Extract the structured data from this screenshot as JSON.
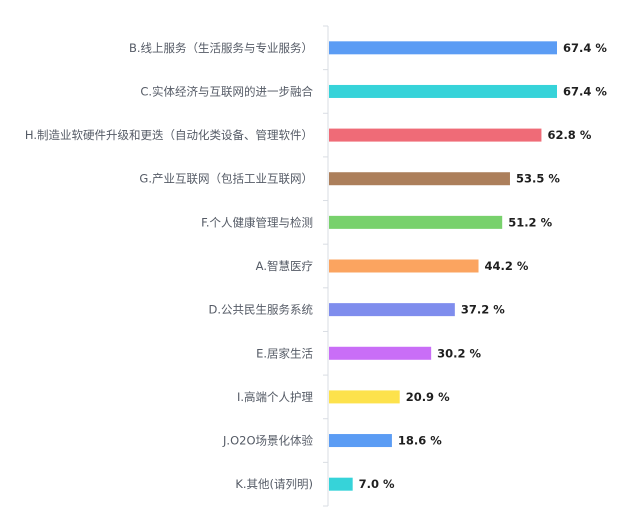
{
  "chart_data": {
    "type": "bar",
    "orientation": "horizontal",
    "categories": [
      "B.线上服务（生活服务与专业服务）",
      "C.实体经济与互联网的进一步融合",
      "H.制造业软硬件升级和更迭（自动化类设备、管理软件）",
      "G.产业互联网（包括工业互联网）",
      "F.个人健康管理与检测",
      "A.智慧医疗",
      "D.公共民生服务系统",
      "E.居家生活",
      "I.高端个人护理",
      "J.O2O场景化体验",
      "K.其他(请列明)"
    ],
    "values": [
      67.4,
      67.4,
      62.8,
      53.5,
      51.2,
      44.2,
      37.2,
      30.2,
      20.9,
      18.6,
      7.0
    ],
    "value_labels": [
      "67.4 %",
      "67.4 %",
      "62.8 %",
      "53.5 %",
      "51.2 %",
      "44.2 %",
      "37.2 %",
      "30.2 %",
      "20.9 %",
      "18.6 %",
      "7.0 %"
    ],
    "colors": [
      "#5b9cf4",
      "#36d3d9",
      "#ef6b77",
      "#ac7f5b",
      "#78d16c",
      "#fba460",
      "#7f8ded",
      "#c96ef7",
      "#fde24c",
      "#5b9cf4",
      "#36d3d9"
    ],
    "xlim": [
      0,
      67.4
    ],
    "axis_color": "#d9dde3",
    "label_color": "#555b66",
    "title": "",
    "xlabel": "",
    "ylabel": "",
    "grid": false,
    "legend": "none"
  }
}
